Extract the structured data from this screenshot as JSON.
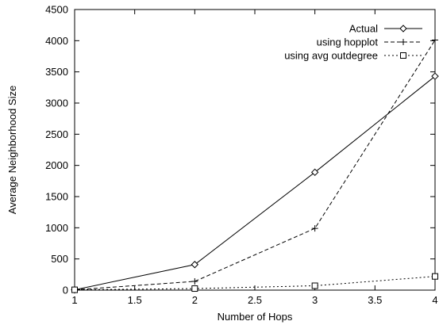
{
  "chart_data": {
    "type": "line",
    "title": "",
    "xlabel": "Number of Hops",
    "ylabel": "Average Neighborhood Size",
    "xlim": [
      1,
      4
    ],
    "ylim": [
      0,
      4500
    ],
    "xticks": [
      "1",
      "1.5",
      "2",
      "2.5",
      "3",
      "3.5",
      "4"
    ],
    "yticks": [
      "0",
      "500",
      "1000",
      "1500",
      "2000",
      "2500",
      "3000",
      "3500",
      "4000",
      "4500"
    ],
    "grid": false,
    "legend_position": "top-right",
    "x": [
      1,
      2,
      3,
      4
    ],
    "series": [
      {
        "name": "Actual",
        "values": [
          5,
          410,
          1890,
          3430
        ],
        "marker": "diamond",
        "line": "solid"
      },
      {
        "name": "using hopplot",
        "values": [
          5,
          140,
          990,
          4010
        ],
        "marker": "plus",
        "line": "dashed"
      },
      {
        "name": "using avg outdegree",
        "values": [
          5,
          25,
          70,
          220
        ],
        "marker": "square",
        "line": "dotted"
      }
    ]
  }
}
